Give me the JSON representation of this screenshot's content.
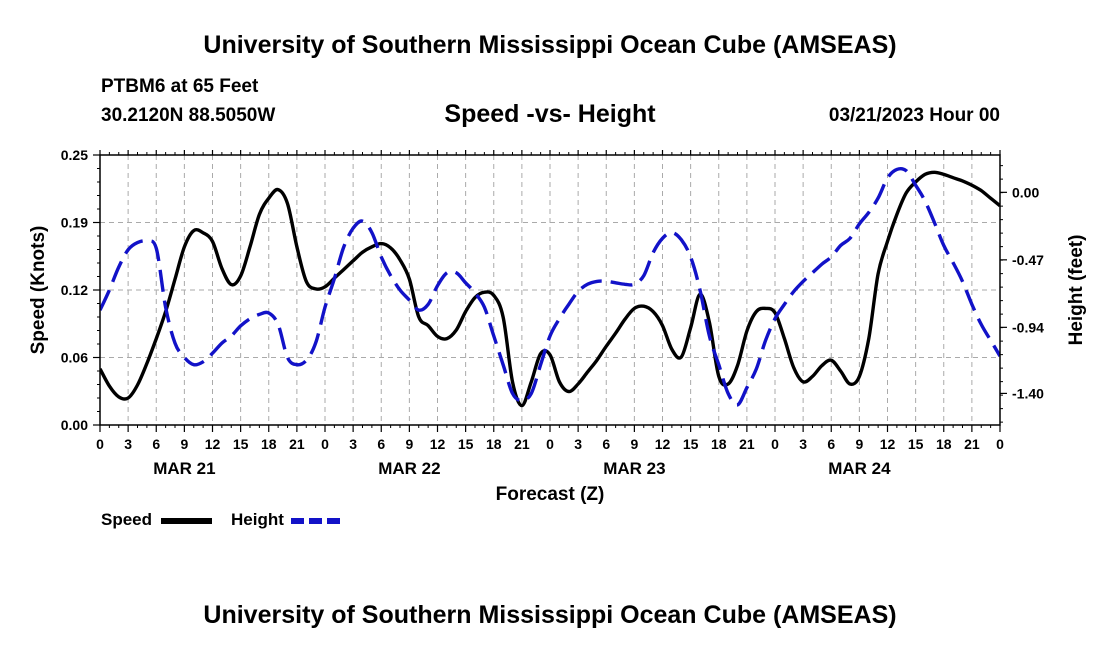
{
  "header": {
    "title": "University of Southern Mississippi Ocean Cube (AMSEAS)",
    "station": "PTBM6 at 65 Feet",
    "coords": "30.2120N  88.5050W",
    "subtitle": "Speed -vs- Height",
    "datetime": "03/21/2023 Hour 00"
  },
  "footer": {
    "title": "University of Southern Mississippi Ocean Cube (AMSEAS)"
  },
  "legend": {
    "speed_label": "Speed",
    "height_label": "Height"
  },
  "colors": {
    "speed": "#000000",
    "height": "#1212c8",
    "grid": "#aaaaaa"
  },
  "chart_data": {
    "type": "line",
    "title": "Speed -vs- Height",
    "xlabel": "Forecast (Z)",
    "ylabel": "Speed (Knots)",
    "ylabel_right": "Height (feet)",
    "x_unit": "hours since 03/21/2023 00Z",
    "xlim": [
      0,
      96
    ],
    "ylim": [
      0,
      0.25
    ],
    "ylim_right": [
      -1.62,
      0.26
    ],
    "x_tick_labels": [
      "0",
      "3",
      "6",
      "9",
      "12",
      "15",
      "18",
      "21",
      "0",
      "3",
      "6",
      "9",
      "12",
      "15",
      "18",
      "21",
      "0",
      "3",
      "6",
      "9",
      "12",
      "15",
      "18",
      "21",
      "0",
      "3",
      "6",
      "9",
      "12",
      "15",
      "18",
      "21",
      "0"
    ],
    "day_labels": [
      {
        "label": "MAR 21",
        "at_hour": 9
      },
      {
        "label": "MAR 22",
        "at_hour": 33
      },
      {
        "label": "MAR 23",
        "at_hour": 57
      },
      {
        "label": "MAR 24",
        "at_hour": 81
      }
    ],
    "y_ticks": [
      "0.00",
      "0.06",
      "0.12",
      "0.19",
      "0.25"
    ],
    "y_tick_values": [
      0,
      0.0625,
      0.125,
      0.1875,
      0.25
    ],
    "y_ticks_right": [
      "-1.40",
      "-0.94",
      "-0.47",
      "0.00"
    ],
    "y_tick_values_right": [
      -1.4,
      -0.94,
      -0.47,
      0.0
    ],
    "series": [
      {
        "name": "Speed",
        "axis": "left",
        "style": "solid",
        "x": [
          0,
          1,
          2,
          3,
          4,
          5,
          6,
          7,
          8,
          9,
          10,
          11,
          12,
          13,
          14,
          15,
          16,
          17,
          18,
          19,
          20,
          21,
          22,
          23,
          24,
          25,
          26,
          27,
          28,
          29,
          30,
          31,
          32,
          33,
          34,
          35,
          36,
          37,
          38,
          39,
          40,
          41,
          42,
          43,
          44,
          45,
          46,
          47,
          48,
          49,
          50,
          51,
          52,
          53,
          54,
          55,
          56,
          57,
          58,
          59,
          60,
          61,
          62,
          63,
          64,
          65,
          66,
          67,
          68,
          69,
          70,
          71,
          72,
          73,
          74,
          75,
          76,
          77,
          78,
          79,
          80,
          81,
          82,
          83,
          84,
          85,
          86,
          87,
          88,
          89,
          90,
          91,
          92,
          93,
          94,
          95,
          96
        ],
        "values": [
          0.052,
          0.036,
          0.026,
          0.025,
          0.037,
          0.057,
          0.08,
          0.105,
          0.135,
          0.165,
          0.18,
          0.178,
          0.17,
          0.145,
          0.13,
          0.138,
          0.165,
          0.195,
          0.21,
          0.218,
          0.205,
          0.165,
          0.133,
          0.126,
          0.128,
          0.136,
          0.144,
          0.152,
          0.16,
          0.165,
          0.168,
          0.164,
          0.153,
          0.135,
          0.1,
          0.092,
          0.082,
          0.08,
          0.088,
          0.105,
          0.118,
          0.123,
          0.12,
          0.1,
          0.04,
          0.018,
          0.04,
          0.066,
          0.065,
          0.04,
          0.031,
          0.038,
          0.049,
          0.06,
          0.073,
          0.085,
          0.098,
          0.108,
          0.11,
          0.105,
          0.092,
          0.07,
          0.063,
          0.09,
          0.121,
          0.095,
          0.045,
          0.038,
          0.055,
          0.087,
          0.105,
          0.108,
          0.104,
          0.08,
          0.053,
          0.04,
          0.045,
          0.055,
          0.06,
          0.05,
          0.038,
          0.045,
          0.08,
          0.14,
          0.17,
          0.195,
          0.215,
          0.225,
          0.232,
          0.234,
          0.232,
          0.229,
          0.226,
          0.222,
          0.217,
          0.21,
          0.203
        ]
      },
      {
        "name": "Height",
        "axis": "right",
        "style": "dashed",
        "x": [
          0,
          1,
          2,
          3,
          4,
          5,
          6,
          7,
          8,
          9,
          10,
          11,
          12,
          13,
          14,
          15,
          16,
          17,
          18,
          19,
          20,
          21,
          22,
          23,
          24,
          25,
          26,
          27,
          28,
          29,
          30,
          31,
          32,
          33,
          34,
          35,
          36,
          37,
          38,
          39,
          40,
          41,
          42,
          43,
          44,
          45,
          46,
          47,
          48,
          49,
          50,
          51,
          52,
          53,
          54,
          55,
          56,
          57,
          58,
          59,
          60,
          61,
          62,
          63,
          64,
          65,
          66,
          67,
          68,
          69,
          70,
          71,
          72,
          73,
          74,
          75,
          76,
          77,
          78,
          79,
          80,
          81,
          82,
          83,
          84,
          85,
          86,
          87,
          88,
          89,
          90,
          91,
          92,
          93,
          94,
          95,
          96
        ],
        "values": [
          -0.82,
          -0.68,
          -0.52,
          -0.4,
          -0.35,
          -0.34,
          -0.39,
          -0.8,
          -1.05,
          -1.15,
          -1.2,
          -1.18,
          -1.12,
          -1.05,
          -1.0,
          -0.93,
          -0.88,
          -0.85,
          -0.84,
          -0.92,
          -1.15,
          -1.2,
          -1.17,
          -1.05,
          -0.8,
          -0.6,
          -0.38,
          -0.25,
          -0.2,
          -0.28,
          -0.45,
          -0.58,
          -0.68,
          -0.75,
          -0.82,
          -0.78,
          -0.65,
          -0.56,
          -0.56,
          -0.63,
          -0.7,
          -0.8,
          -1.0,
          -1.2,
          -1.4,
          -1.45,
          -1.4,
          -1.2,
          -1.0,
          -0.88,
          -0.78,
          -0.69,
          -0.64,
          -0.62,
          -0.62,
          -0.63,
          -0.64,
          -0.64,
          -0.58,
          -0.42,
          -0.32,
          -0.28,
          -0.33,
          -0.45,
          -0.68,
          -1.0,
          -1.2,
          -1.4,
          -1.48,
          -1.36,
          -1.23,
          -1.03,
          -0.88,
          -0.78,
          -0.69,
          -0.62,
          -0.56,
          -0.5,
          -0.45,
          -0.37,
          -0.32,
          -0.22,
          -0.14,
          -0.04,
          0.1,
          0.16,
          0.15,
          0.05,
          -0.06,
          -0.21,
          -0.37,
          -0.49,
          -0.62,
          -0.78,
          -0.92,
          -1.03,
          -1.14
        ]
      }
    ]
  }
}
